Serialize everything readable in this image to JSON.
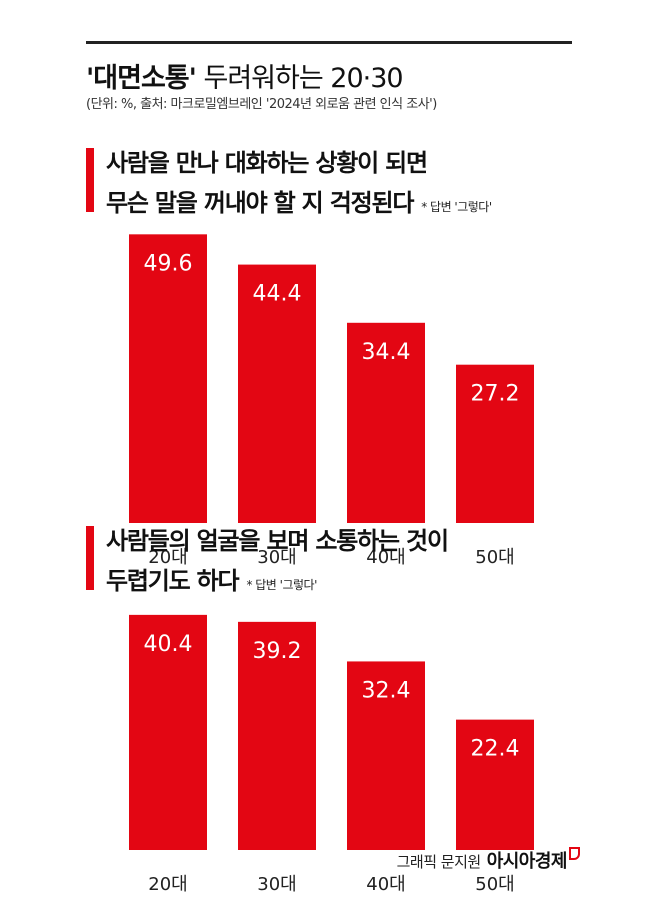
{
  "header": {
    "title_quoted": "'대면소통'",
    "title_rest": " 두려워하는 20·30",
    "source": "(단위: %, 출처: 마크로밀엠브레인 '2024년 외로움 관련 인식 조사')"
  },
  "colors": {
    "bar": "#e30613",
    "accent": "#e30613",
    "label": "#ffffff"
  },
  "chart_data": [
    {
      "type": "bar",
      "title_lines": [
        "사람을 만나 대화하는 상황이 되면",
        "무슨 말을 꺼내야 할 지 걱정된다"
      ],
      "note": "* 답변 '그렇다'",
      "categories": [
        "20대",
        "30대",
        "40대",
        "50대"
      ],
      "values": [
        49.6,
        44.4,
        34.4,
        27.2
      ],
      "ylim": [
        0,
        49.6
      ],
      "grid": false,
      "legend": "none"
    },
    {
      "type": "bar",
      "title_lines": [
        "사람들의 얼굴을 보며 소통하는 것이",
        "두렵기도 하다"
      ],
      "note": "* 답변 '그렇다'",
      "categories": [
        "20대",
        "30대",
        "40대",
        "50대"
      ],
      "values": [
        40.4,
        39.2,
        32.4,
        22.4
      ],
      "ylim": [
        0,
        49.6
      ],
      "grid": false,
      "legend": "none"
    }
  ],
  "footer": {
    "credit": "그래픽 문지원",
    "brand": "아시아경제"
  }
}
